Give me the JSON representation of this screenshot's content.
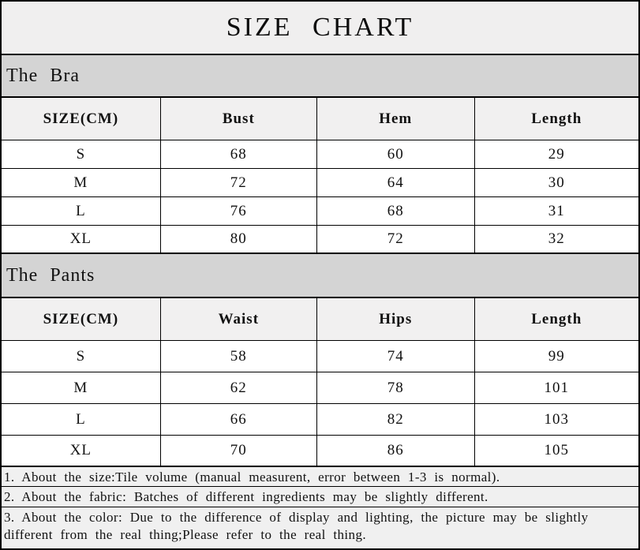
{
  "title": "SIZE CHART",
  "sections": [
    {
      "heading": "The Bra",
      "columns": [
        "SIZE(CM)",
        "Bust",
        "Hem",
        "Length"
      ],
      "rows": [
        [
          "S",
          "68",
          "60",
          "29"
        ],
        [
          "M",
          "72",
          "64",
          "30"
        ],
        [
          "L",
          "76",
          "68",
          "31"
        ],
        [
          "XL",
          "80",
          "72",
          "32"
        ]
      ]
    },
    {
      "heading": "The Pants",
      "columns": [
        "SIZE(CM)",
        "Waist",
        "Hips",
        "Length"
      ],
      "rows": [
        [
          "S",
          "58",
          "74",
          "99"
        ],
        [
          "M",
          "62",
          "78",
          "101"
        ],
        [
          "L",
          "66",
          "82",
          "103"
        ],
        [
          "XL",
          "70",
          "86",
          "105"
        ]
      ]
    }
  ],
  "notes": [
    "1. About the size:Tile volume (manual measurent, error between 1-3 is normal).",
    "2. About the fabric: Batches of different ingredients may be slightly different.",
    "3. About the color: Due to the difference of display and lighting, the picture may be slightly different from the real thing;Please refer to the real thing."
  ],
  "colors": {
    "border": "#000000",
    "title_bg": "#f0efef",
    "section_band_bg": "#d4d4d4",
    "table_header_bg": "#f1f0f0",
    "data_row_bg": "#ffffff",
    "notes_bg": "#f0f0f0",
    "text": "#111111"
  }
}
